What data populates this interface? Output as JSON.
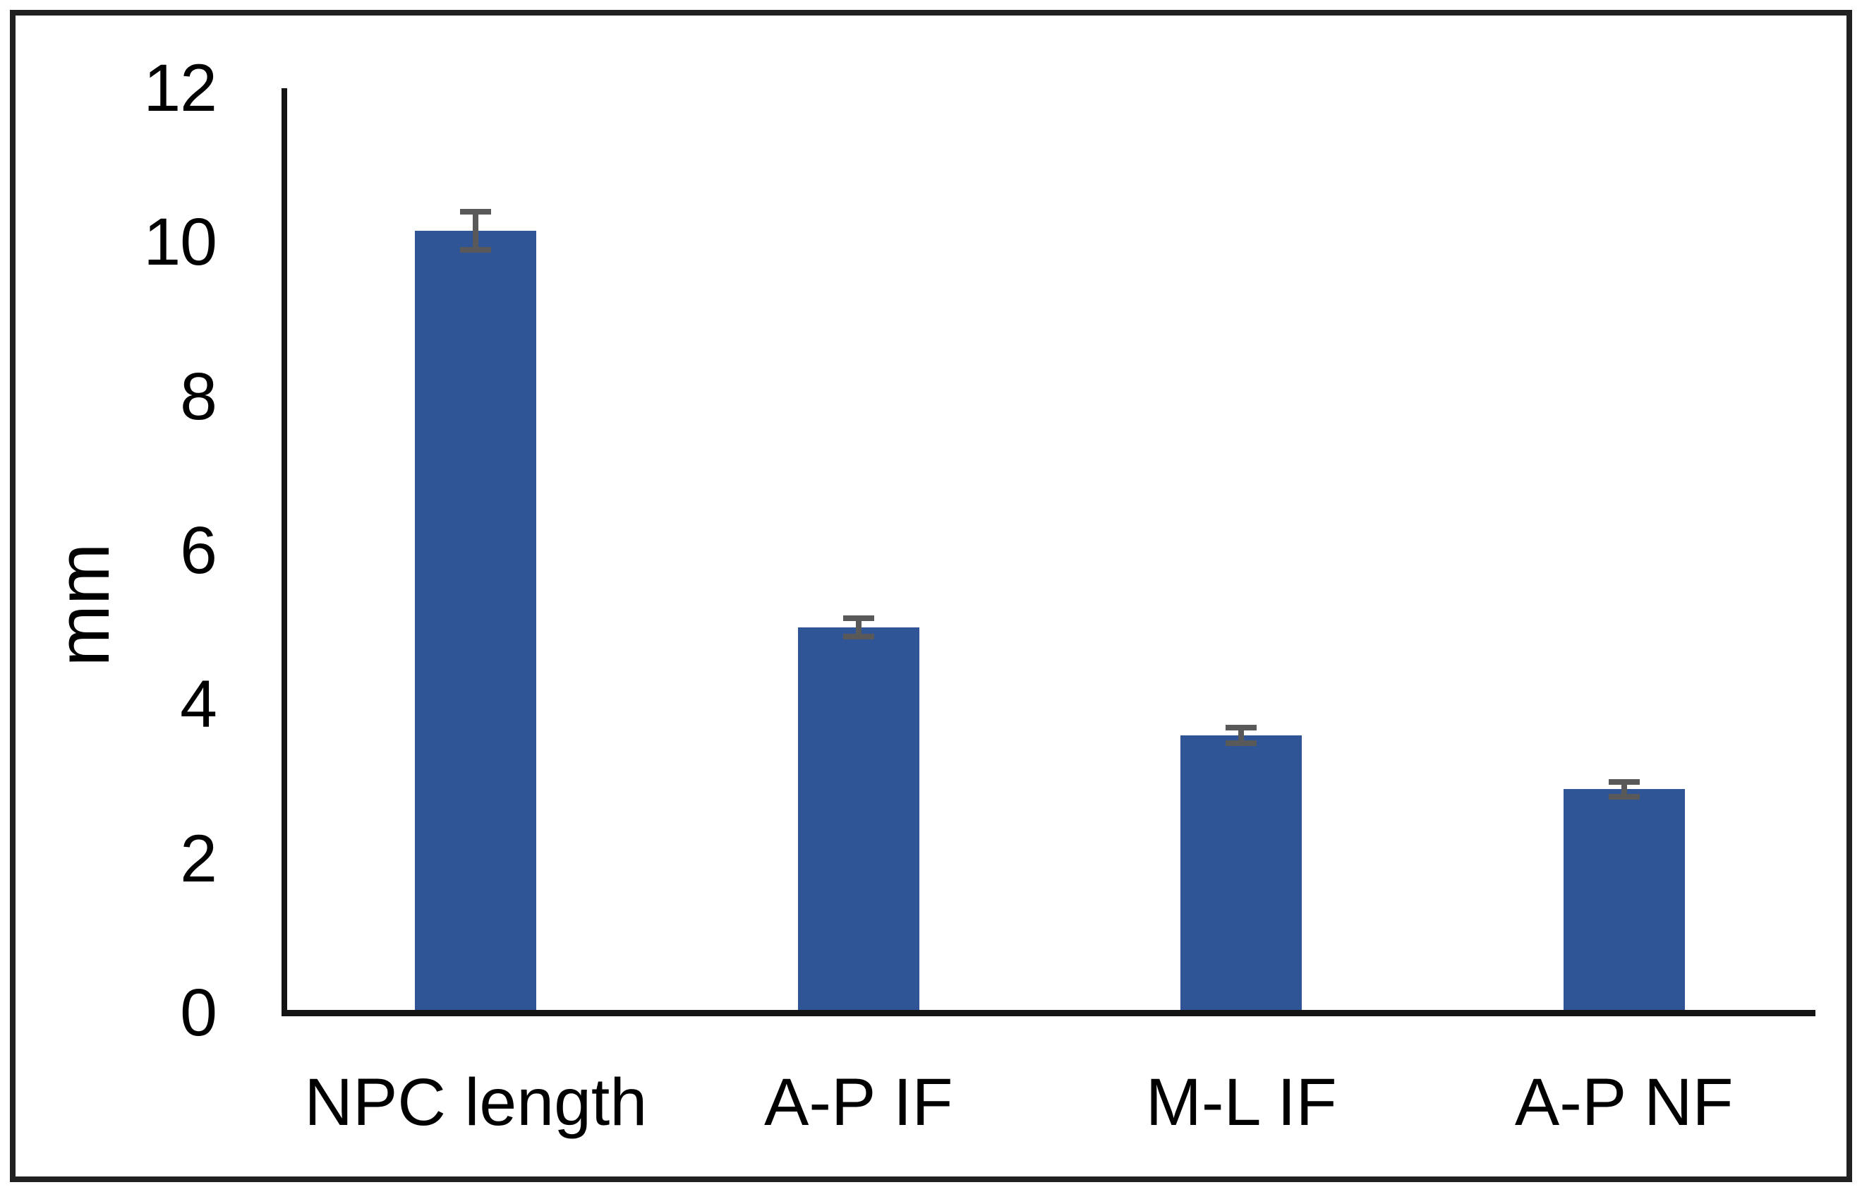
{
  "chart_data": {
    "type": "bar",
    "categories": [
      "NPC length",
      "A-P IF",
      "M-L IF",
      "A-P NF"
    ],
    "values": [
      10.15,
      5.0,
      3.6,
      2.9
    ],
    "errors": [
      0.25,
      0.12,
      0.1,
      0.1
    ],
    "title": "",
    "xlabel": "",
    "ylabel": "mm",
    "ylim": [
      0,
      12
    ],
    "yticks": [
      0,
      2,
      4,
      6,
      8,
      10,
      12
    ],
    "grid": false,
    "legend": false,
    "bar_color": "#2F5596",
    "error_bar_color": "#595959",
    "axis_color": "#141414",
    "frame_color": "#212121",
    "background_color": "#FFFFFF"
  }
}
